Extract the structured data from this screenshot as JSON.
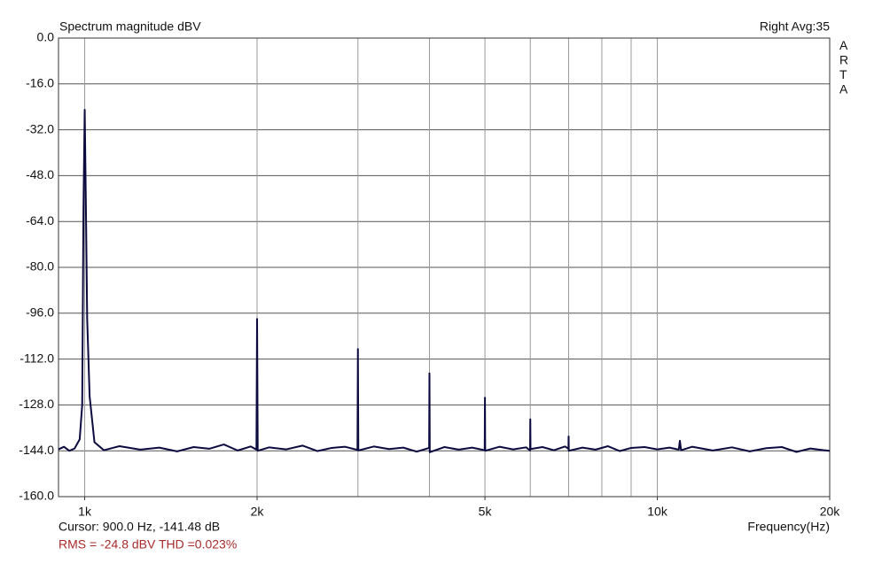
{
  "chart_data": {
    "type": "line",
    "title": "Spectrum magnitude dBV",
    "status": "Right  Avg:35",
    "brand": "ARTA",
    "cursor": "Cursor:  900.0 Hz, -141.48 dB",
    "summary": "RMS =  -24.8 dBV   THD =0.023%",
    "x_label": "Frequency(Hz)",
    "log_x": true,
    "grid": true,
    "color": "#0b0b40",
    "xlim": [
      900,
      20000
    ],
    "ylim": [
      -160,
      0
    ],
    "xticks": [
      {
        "value": 1000,
        "label": "1k"
      },
      {
        "value": 2000,
        "label": "2k"
      },
      {
        "value": 5000,
        "label": "5k"
      },
      {
        "value": 10000,
        "label": "10k"
      },
      {
        "value": 20000,
        "label": "20k"
      }
    ],
    "xgrid": [
      1000,
      2000,
      3000,
      4000,
      5000,
      6000,
      7000,
      8000,
      9000,
      10000
    ],
    "yticks": [
      {
        "value": 0,
        "label": "0.0"
      },
      {
        "value": -16,
        "label": "-16.0"
      },
      {
        "value": -32,
        "label": "-32.0"
      },
      {
        "value": -48,
        "label": "-48.0"
      },
      {
        "value": -64,
        "label": "-64.0"
      },
      {
        "value": -80,
        "label": "-80.0"
      },
      {
        "value": -96,
        "label": "-96.0"
      },
      {
        "value": -112,
        "label": "-112.0"
      },
      {
        "value": -128,
        "label": "-128.0"
      },
      {
        "value": -144,
        "label": "-144.0"
      },
      {
        "value": -160,
        "label": "-160.0"
      }
    ],
    "x": [
      900,
      920,
      940,
      960,
      980,
      990,
      995,
      1000,
      1005,
      1010,
      1020,
      1040,
      1080,
      1150,
      1250,
      1350,
      1450,
      1550,
      1650,
      1750,
      1850,
      1950,
      1995,
      2000,
      2005,
      2100,
      2250,
      2400,
      2550,
      2700,
      2850,
      2995,
      3000,
      3005,
      3200,
      3400,
      3600,
      3800,
      3995,
      4000,
      4005,
      4250,
      4500,
      4750,
      4995,
      5000,
      5005,
      5300,
      5600,
      5900,
      5995,
      6000,
      6005,
      6300,
      6600,
      6900,
      6995,
      7000,
      7005,
      7400,
      7800,
      8200,
      8600,
      9000,
      9500,
      10000,
      10500,
      10900,
      10950,
      11000,
      11500,
      12500,
      13500,
      14500,
      15500,
      16500,
      17500,
      18500,
      19500,
      20000
    ],
    "values": [
      -143.5,
      -142.6,
      -144,
      -143.2,
      -140,
      -128,
      -60,
      -25,
      -60,
      -98,
      -125,
      -141,
      -143.8,
      -142.4,
      -143.6,
      -142.9,
      -144.2,
      -142.7,
      -143.3,
      -141.8,
      -143.9,
      -142.5,
      -143.6,
      -98,
      -144,
      -142.8,
      -143.5,
      -142.2,
      -144.1,
      -143,
      -142.6,
      -143.7,
      -108.5,
      -143.9,
      -142.5,
      -143.4,
      -142.9,
      -144.3,
      -143,
      -117,
      -144.5,
      -142.7,
      -143.6,
      -142.9,
      -143.8,
      -125.5,
      -144,
      -142.6,
      -143.5,
      -142.8,
      -143.9,
      -133,
      -143.4,
      -142.7,
      -143.8,
      -142.5,
      -143.3,
      -139,
      -144,
      -142.9,
      -143.6,
      -142.4,
      -144.1,
      -143,
      -142.7,
      -143.5,
      -142.9,
      -143.6,
      -140.5,
      -143.8,
      -142.6,
      -143.9,
      -142.8,
      -144.2,
      -143.1,
      -142.7,
      -144.4,
      -143.2,
      -143.8,
      -144
    ]
  }
}
